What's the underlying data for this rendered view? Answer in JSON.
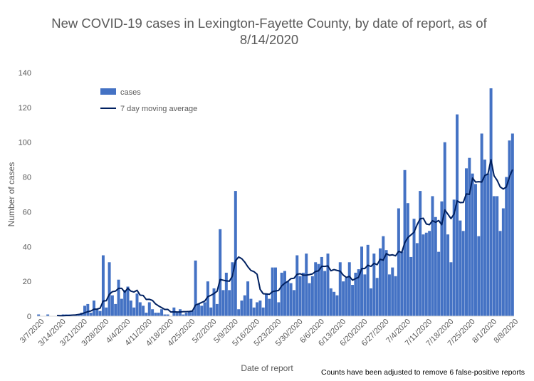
{
  "chart_data": {
    "type": "bar",
    "title_line1": "New COVID-19 cases in Lexington-Fayette County, by date of report, as of",
    "title_line2": "8/14/2020",
    "xlabel": "Date of report",
    "ylabel": "Number of cases",
    "ylim": [
      0,
      140
    ],
    "yticks": [
      0,
      20,
      40,
      60,
      80,
      100,
      120,
      140
    ],
    "xtick_labels": [
      "3/7/2020",
      "3/14/2020",
      "3/21/2020",
      "3/28/2020",
      "4/4/2020",
      "4/11/2020",
      "4/18/2020",
      "4/25/2020",
      "5/2/2020",
      "5/9/2020",
      "5/16/2020",
      "5/23/2020",
      "5/30/2020",
      "6/6/2020",
      "6/13/2020",
      "6/20/2020",
      "6/27/2020",
      "7/4/2020",
      "7/11/2020",
      "7/18/2020",
      "7/25/2020",
      "8/1/2020",
      "8/8/2020"
    ],
    "start_date": "2020-03-06",
    "legend_position": "top-left",
    "grid": false,
    "footnote": "Counts have been adjusted to remove 6 false-positive reports",
    "colors": {
      "bars": "#4472C4",
      "line": "#002060"
    },
    "series": [
      {
        "name": "cases",
        "values": [
          1,
          0,
          0,
          1,
          0,
          0,
          0,
          0,
          1,
          1,
          1,
          1,
          1,
          1,
          2,
          6,
          7,
          2,
          9,
          4,
          3,
          35,
          5,
          31,
          12,
          7,
          21,
          10,
          15,
          17,
          9,
          5,
          13,
          8,
          6,
          2,
          8,
          4,
          2,
          2,
          4,
          1,
          1,
          0,
          5,
          2,
          4,
          1,
          2,
          3,
          3,
          32,
          7,
          6,
          8,
          20,
          5,
          16,
          7,
          50,
          15,
          25,
          15,
          31,
          72,
          4,
          9,
          12,
          20,
          10,
          5,
          8,
          9,
          5,
          13,
          10,
          28,
          28,
          8,
          25,
          26,
          20,
          19,
          15,
          35,
          23,
          25,
          36,
          19,
          23,
          31,
          30,
          34,
          26,
          36,
          16,
          14,
          12,
          31,
          20,
          22,
          31,
          18,
          25,
          27,
          40,
          24,
          41,
          16,
          36,
          22,
          39,
          46,
          38,
          24,
          28,
          23,
          62,
          37,
          84,
          65,
          34,
          56,
          42,
          72,
          47,
          48,
          49,
          69,
          57,
          37,
          66,
          100,
          47,
          31,
          67,
          116,
          55,
          49,
          85,
          91,
          82,
          76,
          46,
          105,
          90,
          82,
          131,
          69,
          69,
          49,
          62,
          80,
          101,
          105
        ]
      },
      {
        "name": "7 day moving average",
        "values": [
          null,
          null,
          null,
          null,
          null,
          null,
          0.4,
          0.3,
          0.3,
          0.4,
          0.4,
          0.6,
          0.7,
          1.0,
          1.3,
          2.0,
          2.6,
          3.0,
          4.0,
          4.1,
          4.6,
          8.7,
          8.9,
          12.6,
          14.1,
          14.4,
          16.0,
          16.0,
          13.8,
          16.1,
          14.4,
          13.9,
          14.9,
          12.1,
          11.9,
          9.6,
          9.7,
          9.1,
          7.1,
          5.9,
          4.9,
          3.9,
          3.9,
          2.4,
          2.5,
          2.4,
          2.4,
          2.6,
          2.6,
          2.7,
          3.0,
          6.4,
          7.1,
          7.9,
          8.7,
          11.2,
          12.0,
          13.0,
          14.3,
          21.1,
          20.7,
          20.3,
          20.1,
          23.1,
          31.9,
          34.0,
          33.1,
          31.1,
          28.4,
          26.3,
          25.6,
          24.1,
          15.4,
          12.9,
          12.8,
          12.6,
          14.1,
          14.5,
          14.8,
          17.4,
          19.0,
          20.0,
          21.6,
          21.8,
          24.1,
          24.4,
          23.6,
          23.6,
          23.9,
          24.3,
          25.7,
          26.1,
          28.7,
          28.6,
          28.9,
          26.1,
          26.8,
          26.3,
          25.9,
          23.6,
          22.3,
          22.9,
          20.7,
          21.6,
          22.4,
          27.4,
          27.4,
          29.3,
          28.6,
          30.4,
          29.6,
          32.7,
          32.2,
          36.0,
          35.0,
          35.3,
          34.7,
          37.3,
          36.6,
          42.3,
          45.2,
          46.7,
          48.3,
          52.6,
          56.0,
          56.3,
          53.0,
          52.6,
          54.9,
          54.0,
          55.0,
          52.6,
          61.1,
          58.6,
          56.1,
          58.7,
          66.3,
          65.3,
          65.4,
          70.3,
          70.0,
          79.4,
          77.1,
          77.3,
          77.1,
          80.9,
          81.7,
          90.0,
          80.7,
          78.1,
          74.3,
          73.1,
          74.3,
          80.0,
          84.3
        ]
      }
    ]
  }
}
